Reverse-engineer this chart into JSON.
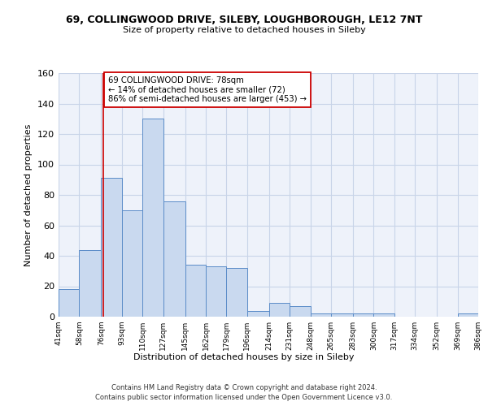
{
  "title_line1": "69, COLLINGWOOD DRIVE, SILEBY, LOUGHBOROUGH, LE12 7NT",
  "title_line2": "Size of property relative to detached houses in Sileby",
  "xlabel": "Distribution of detached houses by size in Sileby",
  "ylabel": "Number of detached properties",
  "footnote1": "Contains HM Land Registry data © Crown copyright and database right 2024.",
  "footnote2": "Contains public sector information licensed under the Open Government Licence v3.0.",
  "bar_edges": [
    41,
    58,
    76,
    93,
    110,
    127,
    145,
    162,
    179,
    196,
    214,
    231,
    248,
    265,
    283,
    300,
    317,
    334,
    352,
    369,
    386
  ],
  "bar_heights": [
    18,
    44,
    91,
    70,
    130,
    76,
    34,
    33,
    32,
    4,
    9,
    7,
    2,
    2,
    2,
    2,
    0,
    0,
    0,
    2
  ],
  "bar_color": "#c9d9ef",
  "bar_edge_color": "#5b8cc8",
  "grid_color": "#c8d4e8",
  "bg_color": "#eef2fa",
  "vline_x": 78,
  "vline_color": "#cc0000",
  "annotation_text": "69 COLLINGWOOD DRIVE: 78sqm\n← 14% of detached houses are smaller (72)\n86% of semi-detached houses are larger (453) →",
  "annotation_box_color": "#ffffff",
  "annotation_box_edge": "#cc0000",
  "ylim": [
    0,
    160
  ],
  "yticks": [
    0,
    20,
    40,
    60,
    80,
    100,
    120,
    140,
    160
  ],
  "tick_labels": [
    "41sqm",
    "58sqm",
    "76sqm",
    "93sqm",
    "110sqm",
    "127sqm",
    "145sqm",
    "162sqm",
    "179sqm",
    "196sqm",
    "214sqm",
    "231sqm",
    "248sqm",
    "265sqm",
    "283sqm",
    "300sqm",
    "317sqm",
    "334sqm",
    "352sqm",
    "369sqm",
    "386sqm"
  ]
}
